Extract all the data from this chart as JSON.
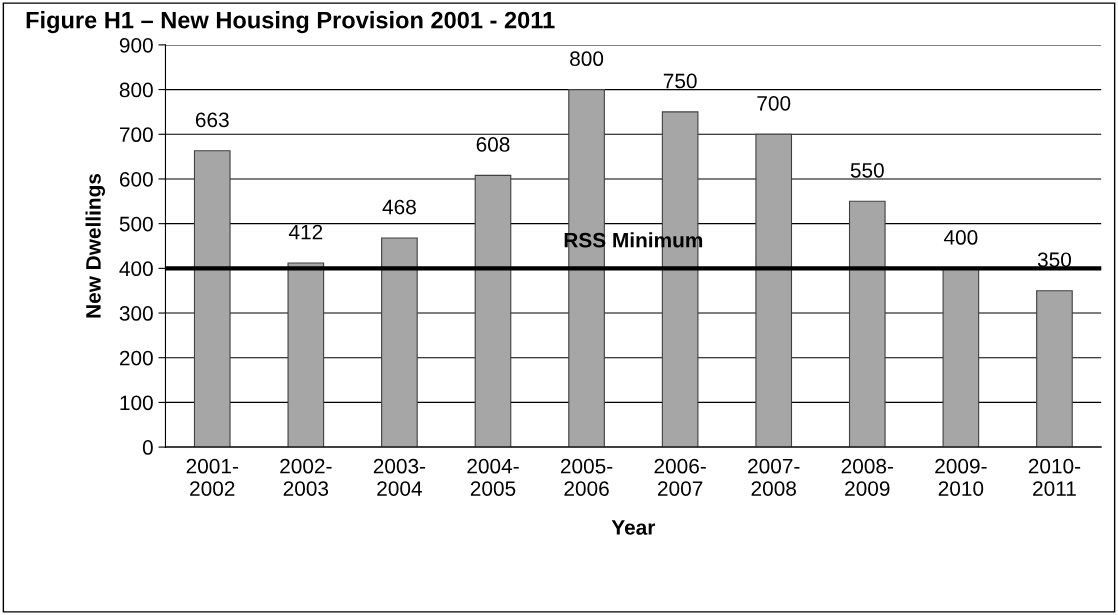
{
  "chart_data": {
    "type": "bar",
    "title": "Figure H1 – New Housing Provision 2001 - 2011",
    "xlabel": "Year",
    "ylabel": "New Dwellings",
    "categories": [
      "2001-\n2002",
      "2002-\n2003",
      "2003-\n2004",
      "2004-\n2005",
      "2005-\n2006",
      "2006-\n2007",
      "2007-\n2008",
      "2008-\n2009",
      "2009-\n2010",
      "2010-\n2011"
    ],
    "values": [
      663,
      412,
      468,
      608,
      800,
      750,
      700,
      550,
      400,
      350
    ],
    "color": "#a6a6a6",
    "data_labels": true,
    "ylim": [
      0,
      900
    ],
    "yticks": [
      0,
      100,
      200,
      300,
      400,
      500,
      600,
      700,
      800,
      900
    ],
    "grid": "y",
    "ref_lines": [
      {
        "axis": "y",
        "value": 400,
        "label": "RSS Minimum",
        "color": "#000000",
        "line_style": "solid"
      }
    ]
  }
}
